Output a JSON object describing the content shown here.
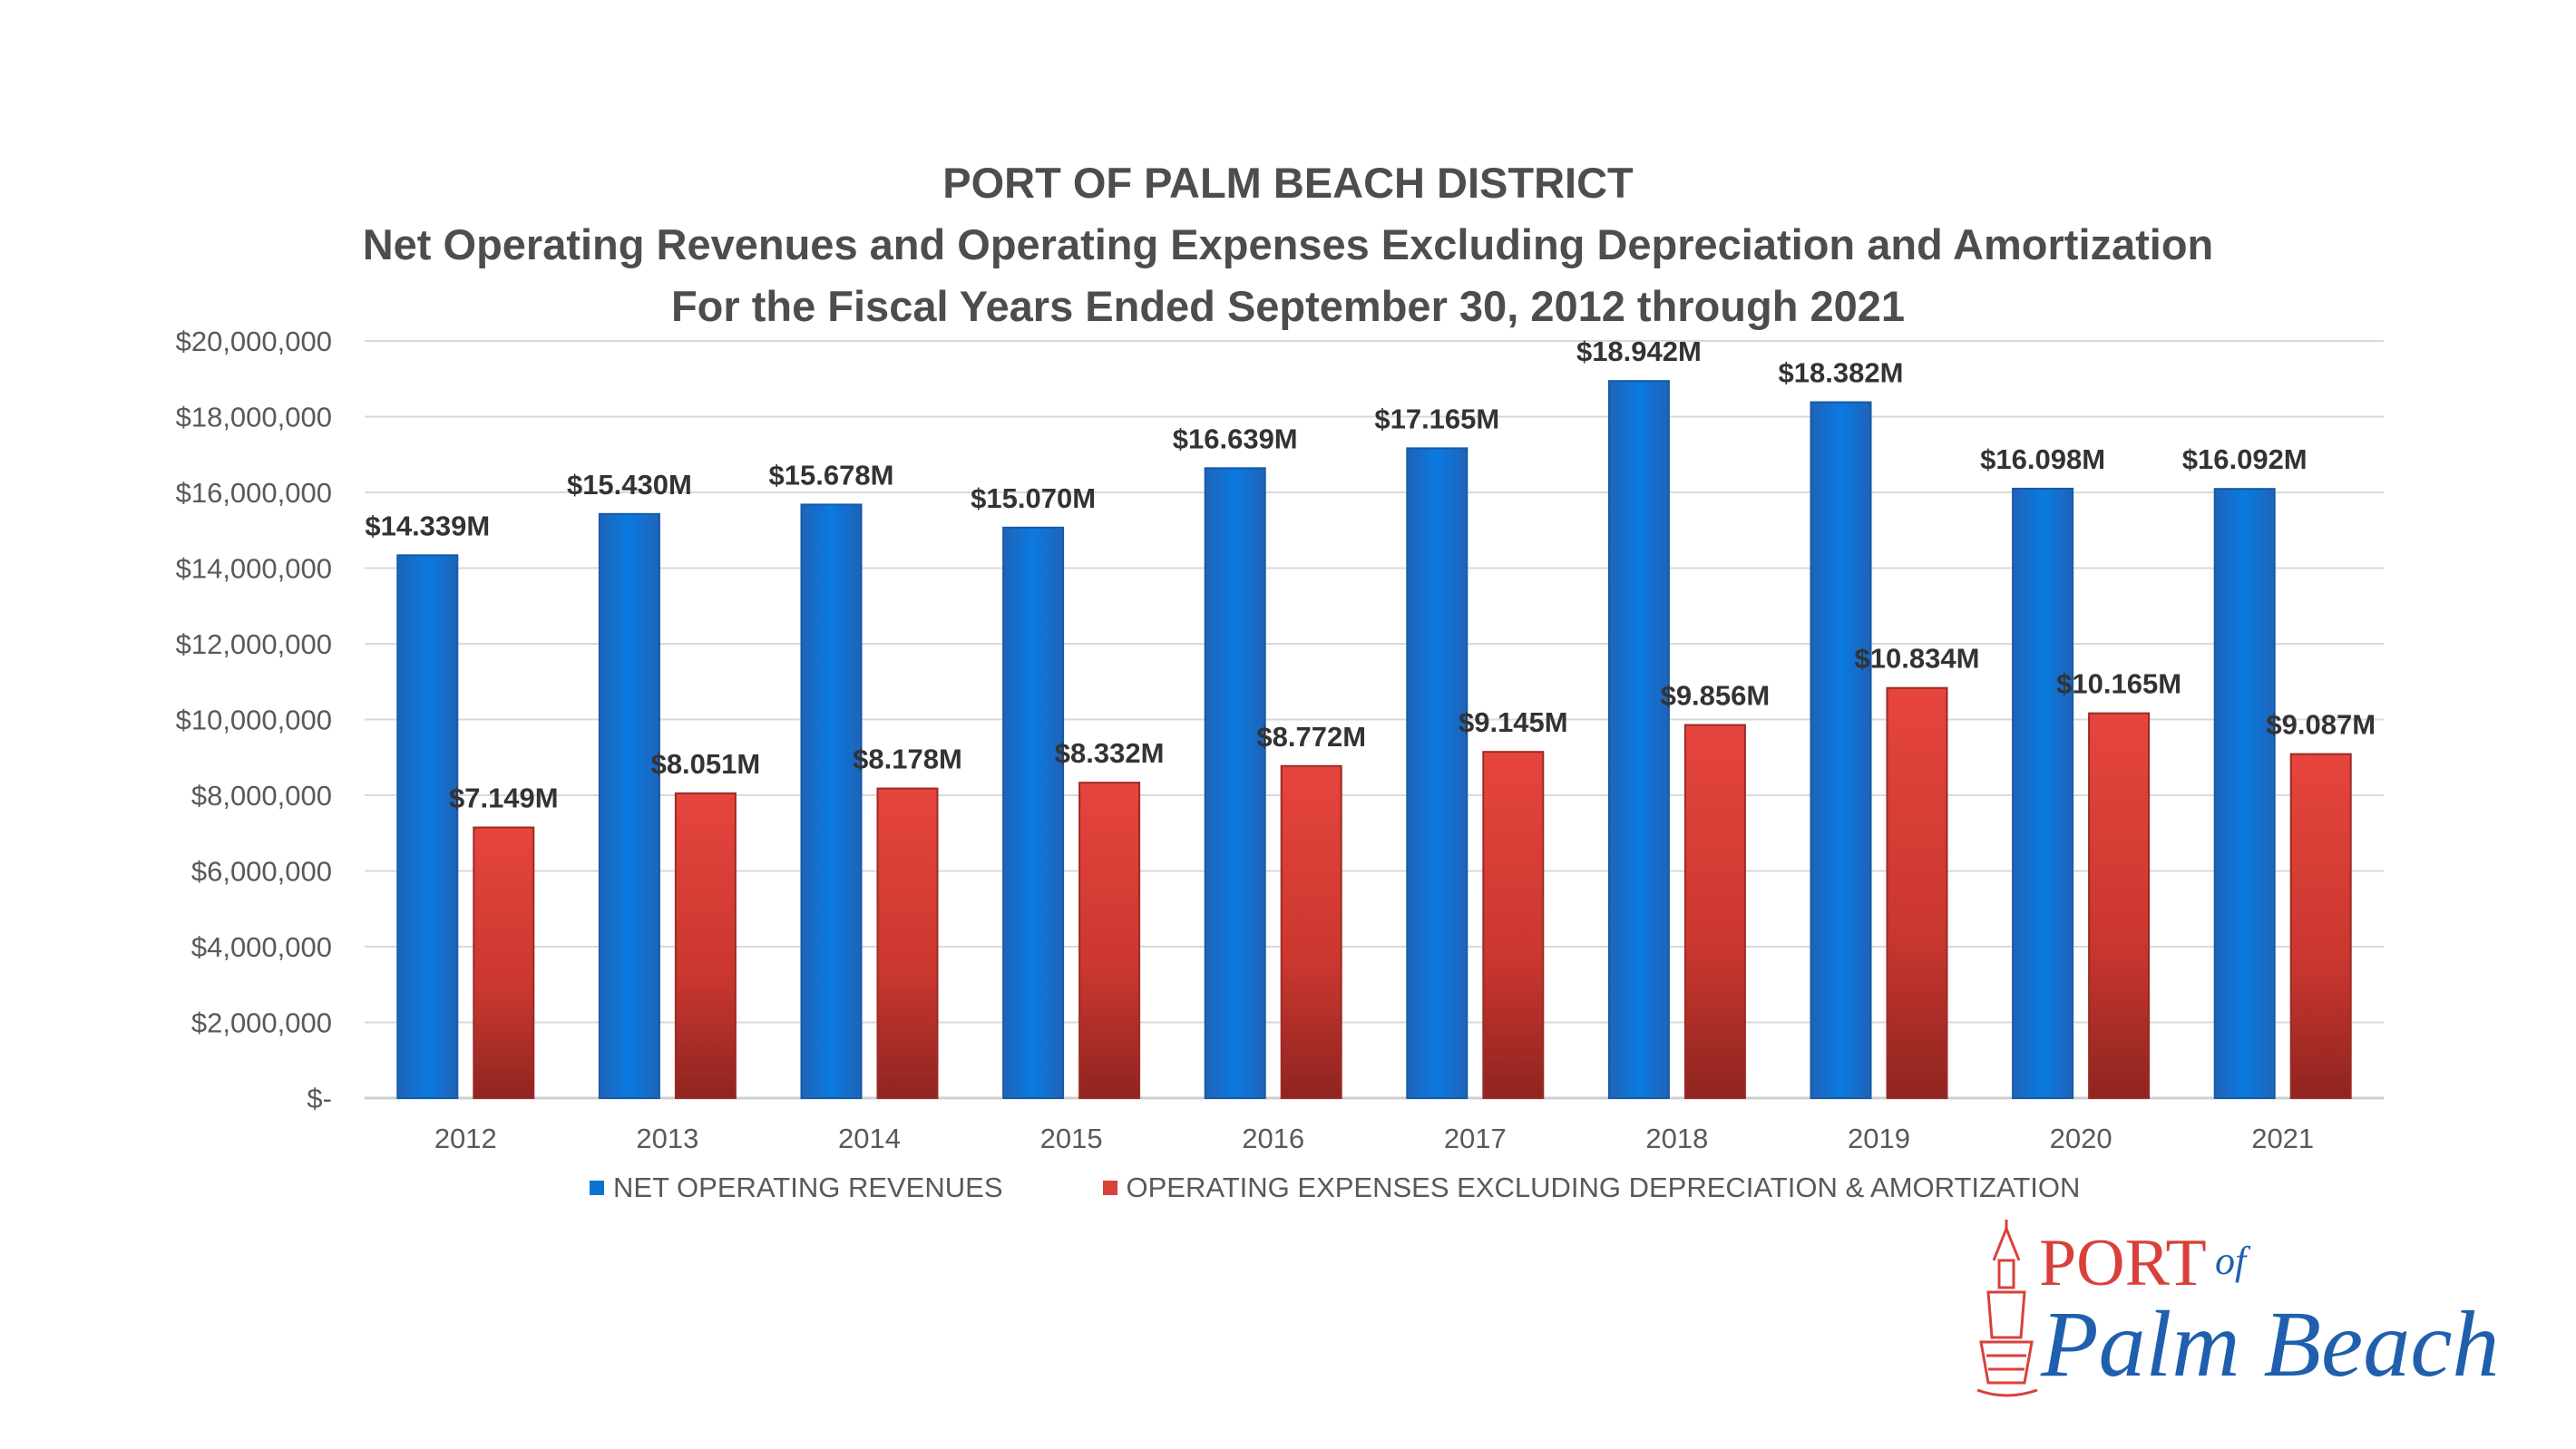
{
  "chart_data": {
    "type": "bar",
    "title": "PORT OF PALM BEACH DISTRICT",
    "subtitle_lines": [
      "Net Operating Revenues and Operating Expenses Excluding Depreciation and Amortization",
      "For the Fiscal Years Ended September 30, 2012 through 2021"
    ],
    "categories": [
      "2012",
      "2013",
      "2014",
      "2015",
      "2016",
      "2017",
      "2018",
      "2019",
      "2020",
      "2021"
    ],
    "series": [
      {
        "name": "NET OPERATING REVENUES",
        "color": "#0a73d1",
        "values": [
          14.339,
          15.43,
          15.678,
          15.07,
          16.639,
          17.165,
          18.942,
          18.382,
          16.098,
          16.092
        ],
        "labels": [
          "$14.339M",
          "$15.430M",
          "$15.678M",
          "$15.070M",
          "$16.639M",
          "$17.165M",
          "$18.942M",
          "$18.382M",
          "$16.098M",
          "$16.092M"
        ]
      },
      {
        "name": "OPERATING EXPENSES EXCLUDING DEPRECIATION & AMORTIZATION",
        "color": "#d9403a",
        "values": [
          7.149,
          8.051,
          8.178,
          8.332,
          8.772,
          9.145,
          9.856,
          10.834,
          10.165,
          9.087
        ],
        "labels": [
          "$7.149M",
          "$8.051M",
          "$8.178M",
          "$8.332M",
          "$8.772M",
          "$9.145M",
          "$9.856M",
          "$10.834M",
          "$10.165M",
          "$9.087M"
        ]
      }
    ],
    "value_unit": "millions of dollars",
    "ylim": [
      0,
      20
    ],
    "yticks": [
      0,
      2,
      4,
      6,
      8,
      10,
      12,
      14,
      16,
      18,
      20
    ],
    "ytick_labels": [
      "$-",
      "$2,000,000",
      "$4,000,000",
      "$6,000,000",
      "$8,000,000",
      "$10,000,000",
      "$12,000,000",
      "$14,000,000",
      "$16,000,000",
      "$18,000,000",
      "$20,000,000"
    ],
    "grid": true,
    "legend_position": "bottom"
  },
  "logo": {
    "word_port": "PORT",
    "word_of": "of",
    "word_palm_beach": "Palm Beach",
    "red": "#d9403a",
    "blue": "#1f5fae"
  }
}
